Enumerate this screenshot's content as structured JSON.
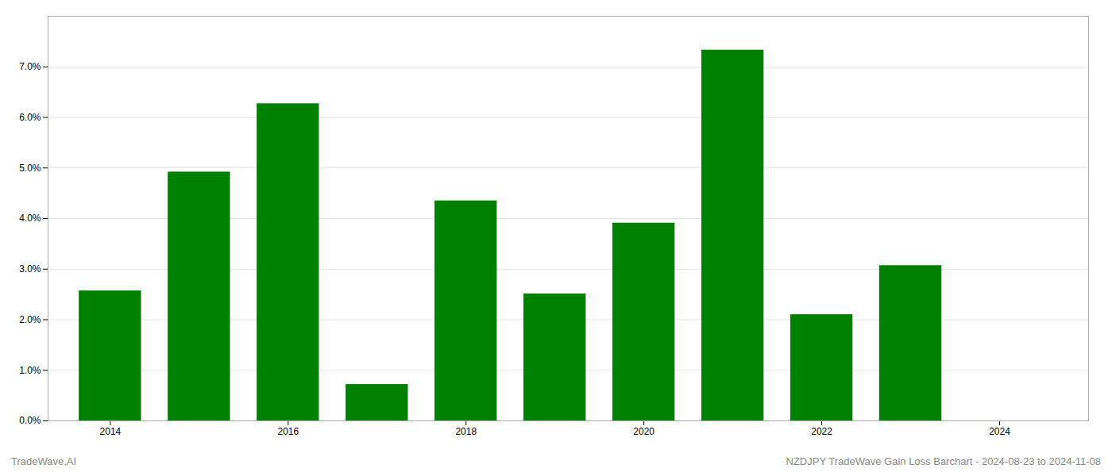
{
  "chart_data": {
    "type": "bar",
    "x": [
      2014,
      2015,
      2016,
      2017,
      2018,
      2019,
      2020,
      2021,
      2022,
      2023
    ],
    "values": [
      0.0257,
      0.0492,
      0.0627,
      0.0072,
      0.0435,
      0.0251,
      0.0391,
      0.0733,
      0.021,
      0.0307
    ],
    "color": "#008000",
    "xlim": [
      2013.3,
      2025.0
    ],
    "xticks": [
      2014,
      2016,
      2018,
      2020,
      2022,
      2024
    ],
    "ylim": [
      0,
      0.08
    ],
    "yticks": [
      {
        "value": 0.0,
        "label": "0.0%"
      },
      {
        "value": 0.01,
        "label": "1.0%"
      },
      {
        "value": 0.02,
        "label": "2.0%"
      },
      {
        "value": 0.03,
        "label": "3.0%"
      },
      {
        "value": 0.04,
        "label": "4.0%"
      },
      {
        "value": 0.05,
        "label": "5.0%"
      },
      {
        "value": 0.06,
        "label": "6.0%"
      },
      {
        "value": 0.07,
        "label": "7.0%"
      }
    ],
    "grid": true,
    "annotations": [
      "TradeWave.AI",
      "NZDJPY TradeWave Gain Loss Barchart - 2024-08-23 to 2024-11-08"
    ]
  }
}
